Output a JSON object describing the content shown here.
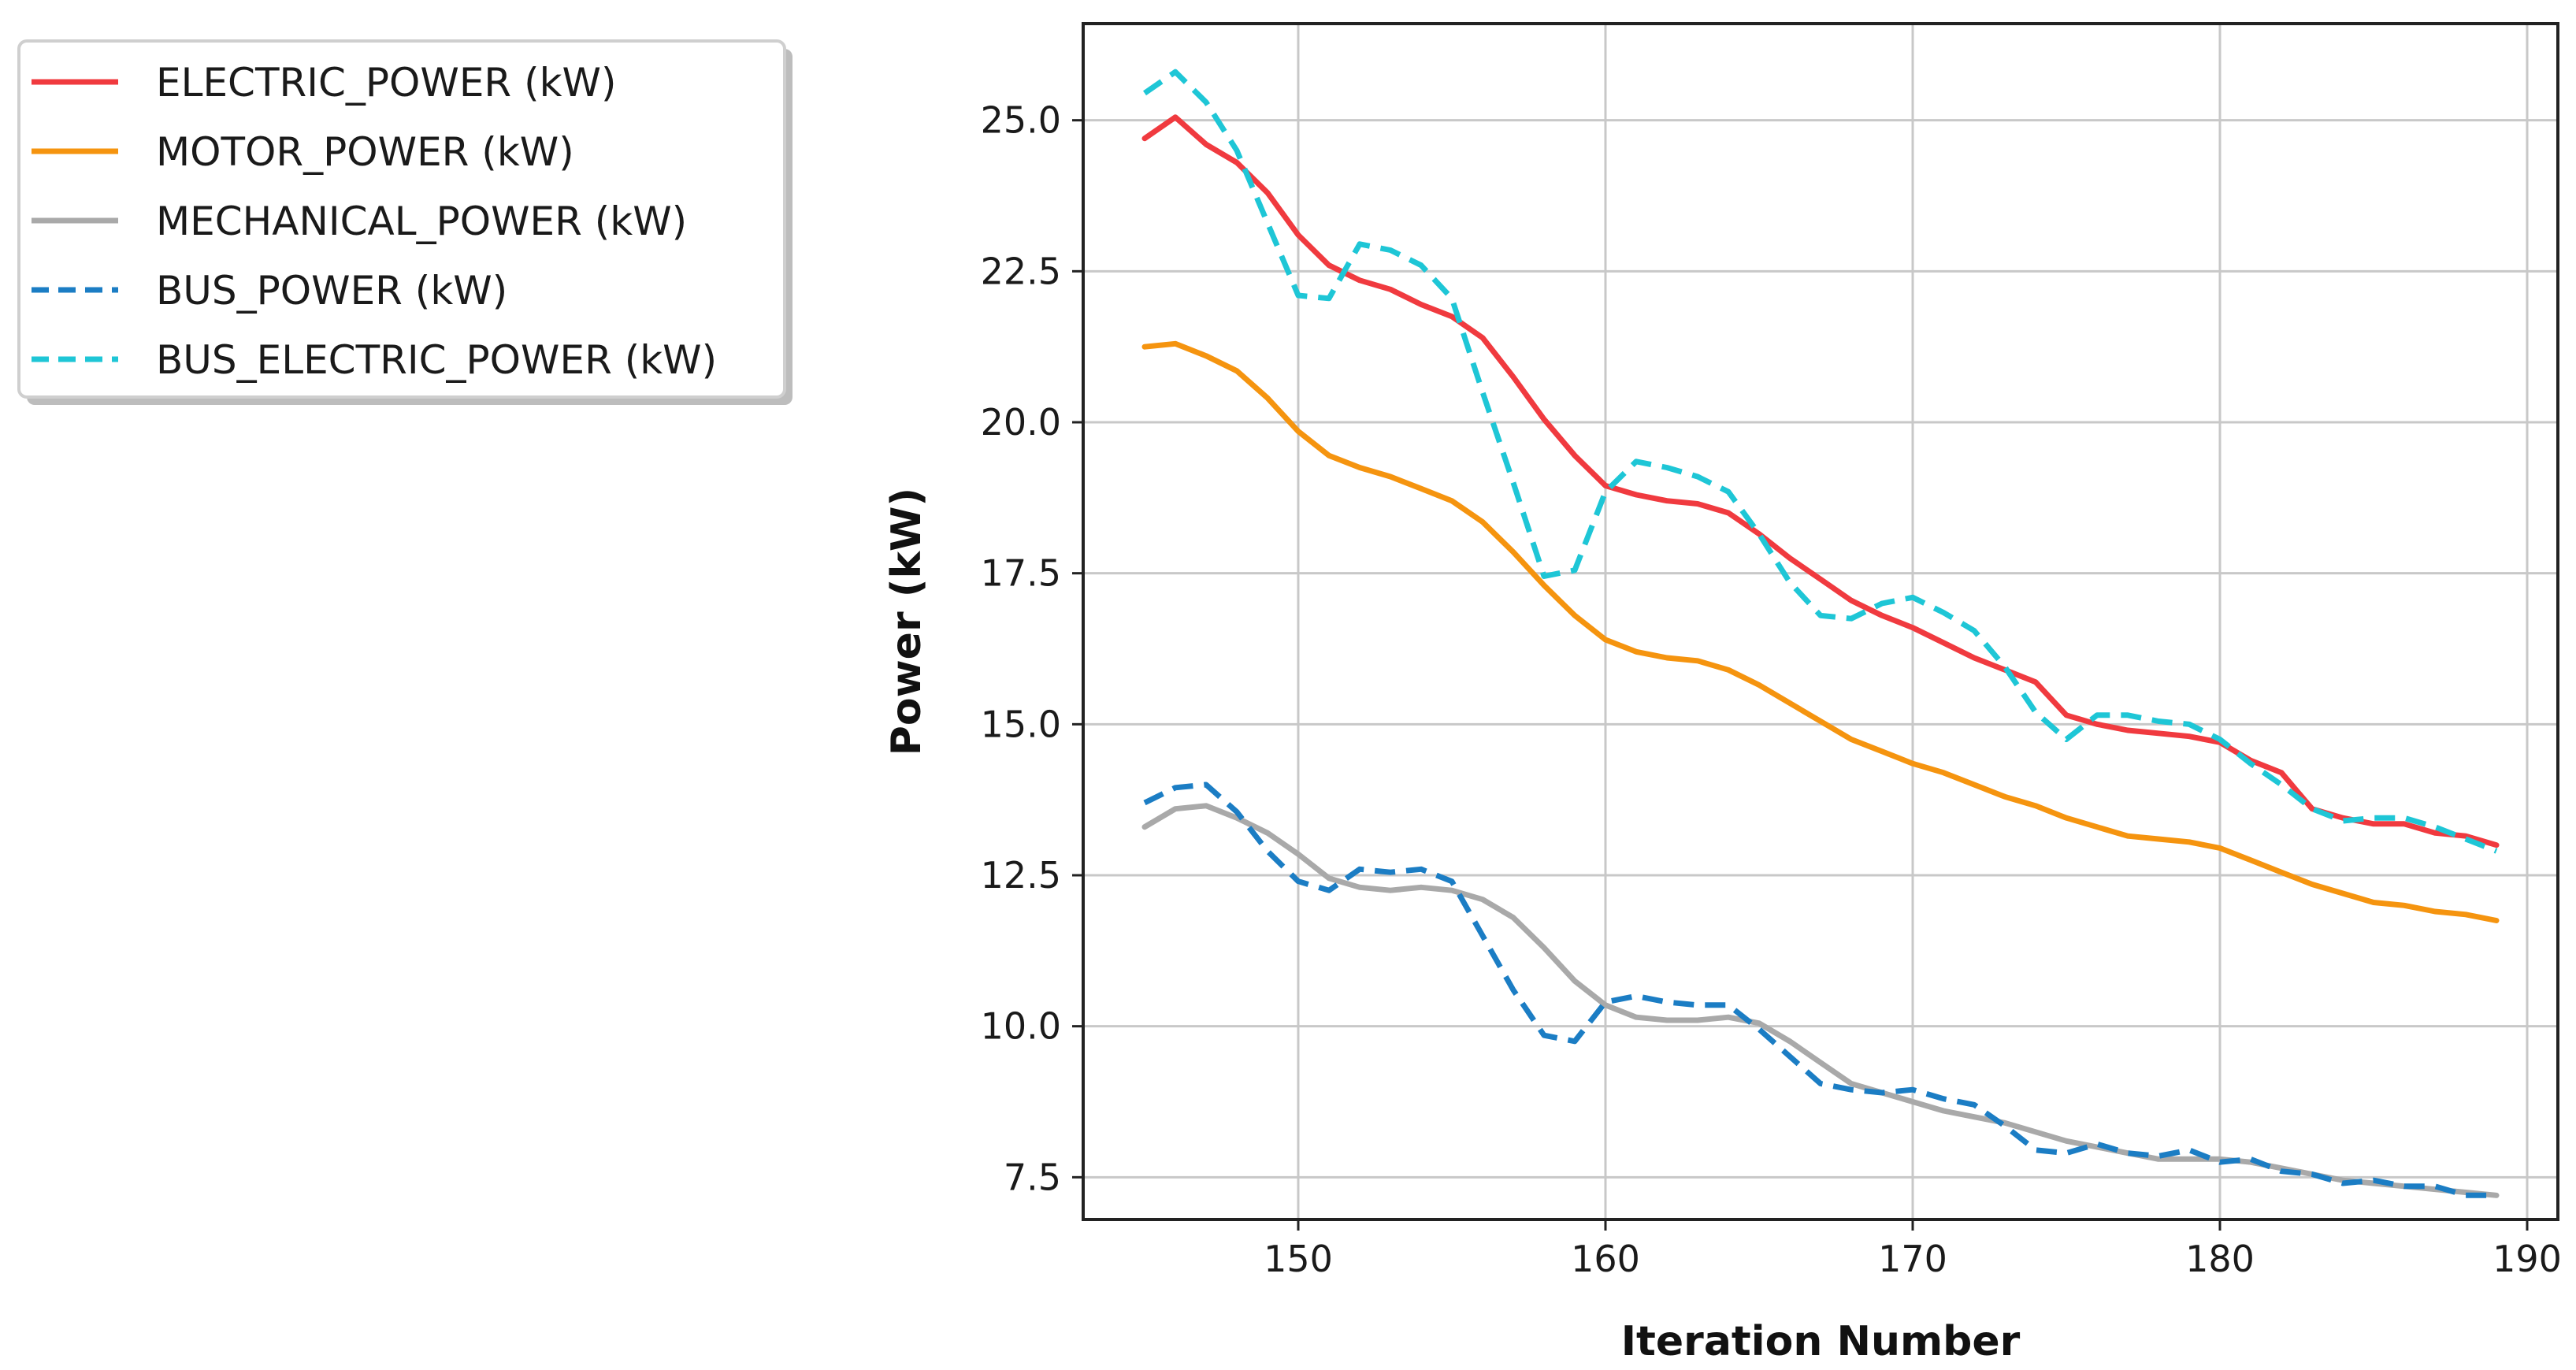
{
  "chart_data": {
    "type": "line",
    "title": "",
    "xlabel": "Iteration Number",
    "ylabel": "Power (kW)",
    "xlim": [
      143,
      191
    ],
    "ylim": [
      6.8,
      26.6
    ],
    "xticks": [
      150,
      160,
      170,
      180,
      190
    ],
    "yticks": [
      7.5,
      10.0,
      12.5,
      15.0,
      17.5,
      20.0,
      22.5,
      25.0
    ],
    "xtick_labels": [
      "150",
      "160",
      "170",
      "180",
      "190"
    ],
    "ytick_labels": [
      "7.5",
      "10.0",
      "12.5",
      "15.0",
      "17.5",
      "20.0",
      "22.5",
      "25.0"
    ],
    "grid": true,
    "legend_position": "outside-upper-left",
    "x": [
      145,
      146,
      147,
      148,
      149,
      150,
      151,
      152,
      153,
      154,
      155,
      156,
      157,
      158,
      159,
      160,
      161,
      162,
      163,
      164,
      165,
      166,
      167,
      168,
      169,
      170,
      171,
      172,
      173,
      174,
      175,
      176,
      177,
      178,
      179,
      180,
      181,
      182,
      183,
      184,
      185,
      186,
      187,
      188,
      189
    ],
    "series": [
      {
        "name": "ELECTRIC_POWER (kW)",
        "color": "#f03a3f",
        "dash": "solid",
        "values": [
          24.7,
          25.05,
          24.6,
          24.3,
          23.8,
          23.1,
          22.6,
          22.35,
          22.2,
          21.95,
          21.75,
          21.4,
          20.75,
          20.05,
          19.45,
          18.95,
          18.8,
          18.7,
          18.65,
          18.5,
          18.15,
          17.75,
          17.4,
          17.05,
          16.8,
          16.6,
          16.35,
          16.1,
          15.9,
          15.7,
          15.15,
          15.0,
          14.9,
          14.85,
          14.8,
          14.7,
          14.4,
          14.2,
          13.6,
          13.45,
          13.35,
          13.35,
          13.2,
          13.15,
          13.0
        ]
      },
      {
        "name": "MOTOR_POWER (kW)",
        "color": "#f5940f",
        "dash": "solid",
        "values": [
          21.25,
          21.3,
          21.1,
          20.85,
          20.4,
          19.85,
          19.45,
          19.25,
          19.1,
          18.9,
          18.7,
          18.35,
          17.85,
          17.3,
          16.8,
          16.4,
          16.2,
          16.1,
          16.05,
          15.9,
          15.65,
          15.35,
          15.05,
          14.75,
          14.55,
          14.35,
          14.2,
          14.0,
          13.8,
          13.65,
          13.45,
          13.3,
          13.15,
          13.1,
          13.05,
          12.95,
          12.75,
          12.55,
          12.35,
          12.2,
          12.05,
          12.0,
          11.9,
          11.85,
          11.75
        ]
      },
      {
        "name": "MECHANICAL_POWER (kW)",
        "color": "#a9a9a9",
        "dash": "solid",
        "values": [
          13.3,
          13.6,
          13.65,
          13.45,
          13.2,
          12.85,
          12.45,
          12.3,
          12.25,
          12.3,
          12.25,
          12.1,
          11.8,
          11.3,
          10.75,
          10.35,
          10.15,
          10.1,
          10.1,
          10.15,
          10.05,
          9.75,
          9.4,
          9.05,
          8.9,
          8.75,
          8.6,
          8.5,
          8.4,
          8.25,
          8.1,
          8.0,
          7.9,
          7.8,
          7.8,
          7.8,
          7.75,
          7.65,
          7.55,
          7.45,
          7.4,
          7.35,
          7.3,
          7.25,
          7.2
        ]
      },
      {
        "name": "BUS_POWER (kW)",
        "color": "#1b7dc4",
        "dash": "dashed",
        "values": [
          13.7,
          13.95,
          14.0,
          13.55,
          12.9,
          12.4,
          12.25,
          12.6,
          12.55,
          12.6,
          12.4,
          11.5,
          10.6,
          9.85,
          9.75,
          10.4,
          10.5,
          10.4,
          10.35,
          10.35,
          9.95,
          9.5,
          9.05,
          8.95,
          8.9,
          8.95,
          8.8,
          8.7,
          8.35,
          7.95,
          7.9,
          8.05,
          7.9,
          7.85,
          7.95,
          7.75,
          7.8,
          7.6,
          7.55,
          7.4,
          7.45,
          7.35,
          7.35,
          7.2,
          7.2
        ]
      },
      {
        "name": "BUS_ELECTRIC_POWER (kW)",
        "color": "#1ec6d6",
        "dash": "dashed",
        "values": [
          25.45,
          25.8,
          25.3,
          24.5,
          23.3,
          22.1,
          22.05,
          22.95,
          22.85,
          22.6,
          22.05,
          20.5,
          19.0,
          17.45,
          17.55,
          18.85,
          19.35,
          19.25,
          19.1,
          18.85,
          18.15,
          17.35,
          16.8,
          16.75,
          17.0,
          17.1,
          16.85,
          16.55,
          15.95,
          15.2,
          14.75,
          15.15,
          15.15,
          15.05,
          15.0,
          14.75,
          14.35,
          14.0,
          13.6,
          13.4,
          13.45,
          13.45,
          13.3,
          13.1,
          12.9
        ]
      }
    ]
  }
}
